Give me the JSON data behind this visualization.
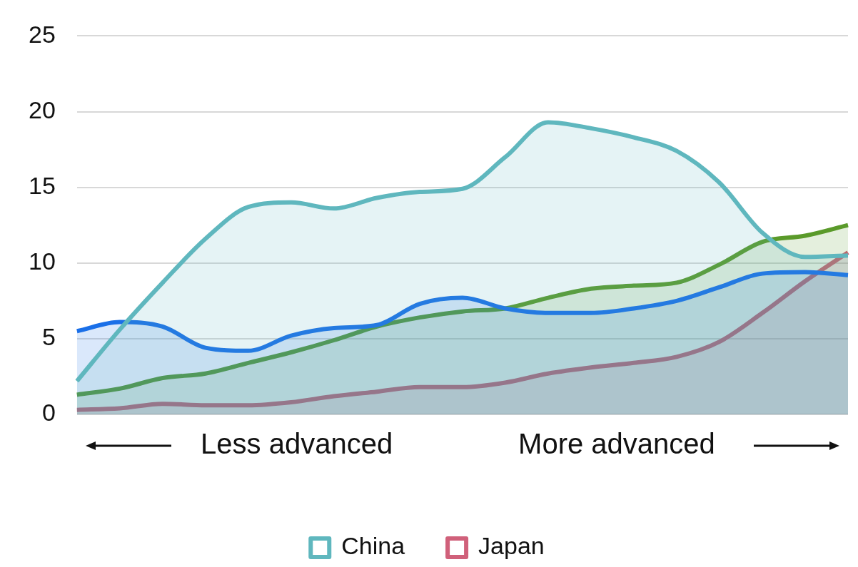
{
  "chart_data": {
    "type": "area",
    "categories": [
      null,
      null,
      null,
      null,
      null,
      null,
      null,
      null,
      null,
      null,
      null,
      null,
      null,
      null,
      null,
      null,
      null,
      null,
      null
    ],
    "series": [
      {
        "name": "China",
        "color": "#5fb7be",
        "values": [
          2.2,
          5.6,
          8.7,
          11.6,
          13.7,
          14.0,
          13.6,
          14.3,
          14.7,
          14.9,
          17.0,
          19.3,
          18.9,
          18.3,
          17.4,
          15.3,
          12.0,
          10.4,
          10.5
        ]
      },
      {
        "color": "#1a6fe8",
        "values": [
          5.5,
          6.1,
          5.8,
          4.4,
          4.2,
          5.2,
          5.7,
          5.9,
          7.3,
          7.7,
          7.0,
          6.7,
          6.7,
          7.0,
          7.5,
          8.4,
          9.3,
          9.4,
          9.2
        ]
      },
      {
        "color": "#5a9a2a",
        "values": [
          1.3,
          1.7,
          2.4,
          2.7,
          3.4,
          4.1,
          4.9,
          5.8,
          6.4,
          6.8,
          7.0,
          7.7,
          8.3,
          8.5,
          8.7,
          9.9,
          11.4,
          11.8,
          12.5
        ]
      },
      {
        "name": "Japan",
        "color": "#d0607a",
        "values": [
          0.3,
          0.4,
          0.7,
          0.6,
          0.6,
          0.8,
          1.2,
          1.5,
          1.8,
          1.8,
          2.1,
          2.7,
          3.1,
          3.4,
          3.8,
          4.8,
          6.7,
          8.8,
          10.7
        ]
      }
    ],
    "ylim": [
      0,
      25
    ],
    "yticks": [
      0,
      5,
      10,
      15,
      20,
      25
    ],
    "grid": "y",
    "tick_labels": "y",
    "legend": "bottom",
    "annotations": [
      "Less advanced",
      "More advanced"
    ]
  }
}
